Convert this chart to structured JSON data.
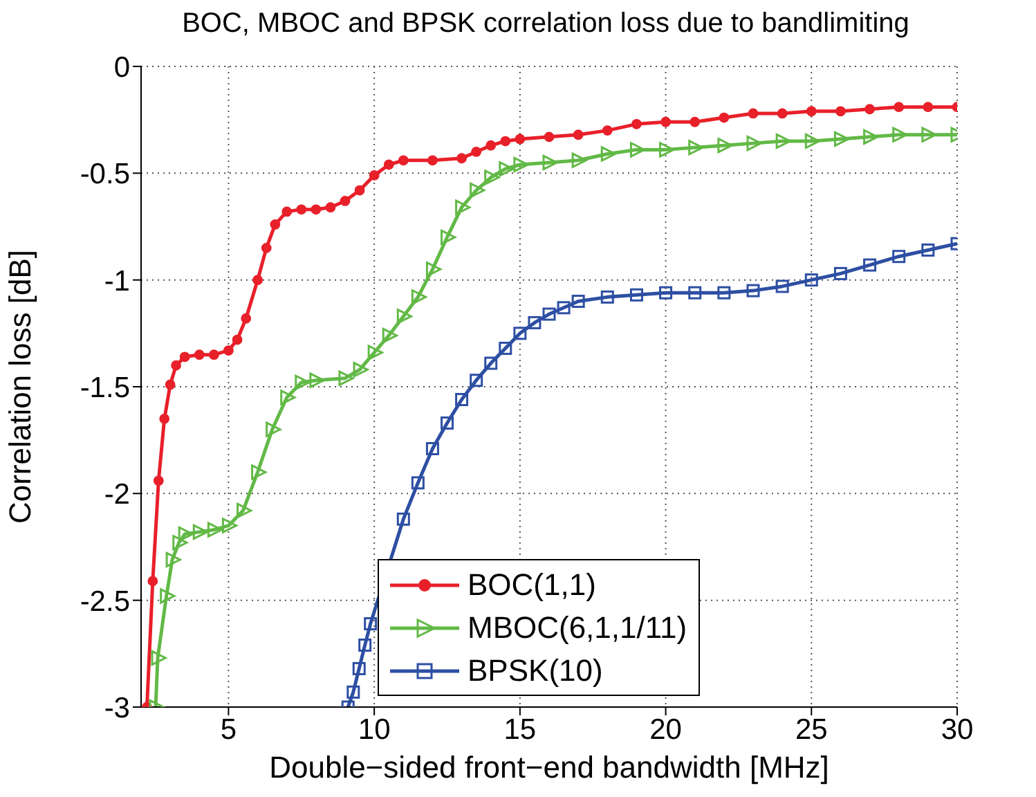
{
  "chart_data": {
    "type": "line",
    "title": "BOC, MBOC and BPSK correlation loss due to bandlimiting",
    "xlabel": "Double−sided front−end bandwidth [MHz]",
    "ylabel": "Correlation loss [dB]",
    "xlim": [
      2,
      30
    ],
    "xticks": [
      5,
      10,
      15,
      20,
      25,
      30
    ],
    "ylim": [
      -3,
      0
    ],
    "yticks": [
      -3,
      -2.5,
      -2,
      -1.5,
      -1,
      -0.5,
      0
    ],
    "grid": true,
    "legend": "bottom",
    "line_style": "solid",
    "series": [
      {
        "name": "BOC(1,1)",
        "color": "#e8202a",
        "marker": "circle",
        "x": [
          2.2,
          2.4,
          2.6,
          2.8,
          3.0,
          3.2,
          3.5,
          4,
          4.5,
          5,
          5.3,
          5.6,
          6,
          6.3,
          6.6,
          7,
          7.5,
          8,
          8.5,
          9,
          9.5,
          10,
          10.5,
          11,
          12,
          13,
          13.5,
          14,
          14.5,
          15,
          16,
          17,
          18,
          19,
          20,
          21,
          22,
          23,
          24,
          25,
          26,
          27,
          28,
          29,
          30
        ],
        "values": [
          -3,
          -2.41,
          -1.94,
          -1.65,
          -1.49,
          -1.4,
          -1.36,
          -1.35,
          -1.35,
          -1.33,
          -1.28,
          -1.18,
          -1.0,
          -0.85,
          -0.74,
          -0.68,
          -0.67,
          -0.67,
          -0.66,
          -0.63,
          -0.58,
          -0.51,
          -0.46,
          -0.44,
          -0.44,
          -0.43,
          -0.4,
          -0.37,
          -0.35,
          -0.34,
          -0.33,
          -0.32,
          -0.3,
          -0.27,
          -0.26,
          -0.26,
          -0.24,
          -0.22,
          -0.22,
          -0.21,
          -0.21,
          -0.2,
          -0.19,
          -0.19,
          -0.19
        ]
      },
      {
        "name": "MBOC(6,1,1/11)",
        "color": "#62b946",
        "marker": "triangle",
        "x": [
          2.5,
          2.57,
          2.87,
          3.07,
          3.3,
          3.5,
          4,
          4.5,
          5,
          5.5,
          6,
          6.5,
          7,
          7.5,
          8,
          9,
          9.5,
          10,
          10.5,
          11,
          11.5,
          12,
          12.5,
          13,
          13.5,
          14,
          14.5,
          15,
          16,
          17,
          18,
          19,
          20,
          21,
          22,
          23,
          24,
          25,
          26,
          27,
          28,
          29,
          30
        ],
        "values": [
          -3,
          -2.77,
          -2.48,
          -2.31,
          -2.23,
          -2.19,
          -2.18,
          -2.17,
          -2.15,
          -2.08,
          -1.9,
          -1.7,
          -1.55,
          -1.48,
          -1.47,
          -1.46,
          -1.42,
          -1.34,
          -1.26,
          -1.17,
          -1.08,
          -0.95,
          -0.8,
          -0.66,
          -0.58,
          -0.52,
          -0.48,
          -0.46,
          -0.45,
          -0.44,
          -0.41,
          -0.39,
          -0.39,
          -0.38,
          -0.37,
          -0.36,
          -0.35,
          -0.35,
          -0.34,
          -0.33,
          -0.32,
          -0.32,
          -0.32
        ]
      },
      {
        "name": "BPSK(10)",
        "color": "#2d4fa3",
        "marker": "square",
        "x": [
          9.1,
          9.28,
          9.48,
          9.68,
          9.87,
          11,
          11.5,
          12,
          12.5,
          13,
          13.5,
          14,
          14.5,
          15,
          15.5,
          16,
          16.5,
          17,
          18,
          19,
          20,
          21,
          22,
          23,
          24,
          25,
          26,
          27,
          28,
          29,
          30
        ],
        "values": [
          -3,
          -2.93,
          -2.82,
          -2.71,
          -2.61,
          -2.12,
          -1.95,
          -1.79,
          -1.67,
          -1.56,
          -1.47,
          -1.39,
          -1.32,
          -1.25,
          -1.2,
          -1.16,
          -1.13,
          -1.1,
          -1.08,
          -1.07,
          -1.06,
          -1.06,
          -1.06,
          -1.05,
          -1.03,
          -1.0,
          -0.97,
          -0.93,
          -0.89,
          -0.86,
          -0.83
        ]
      }
    ]
  }
}
